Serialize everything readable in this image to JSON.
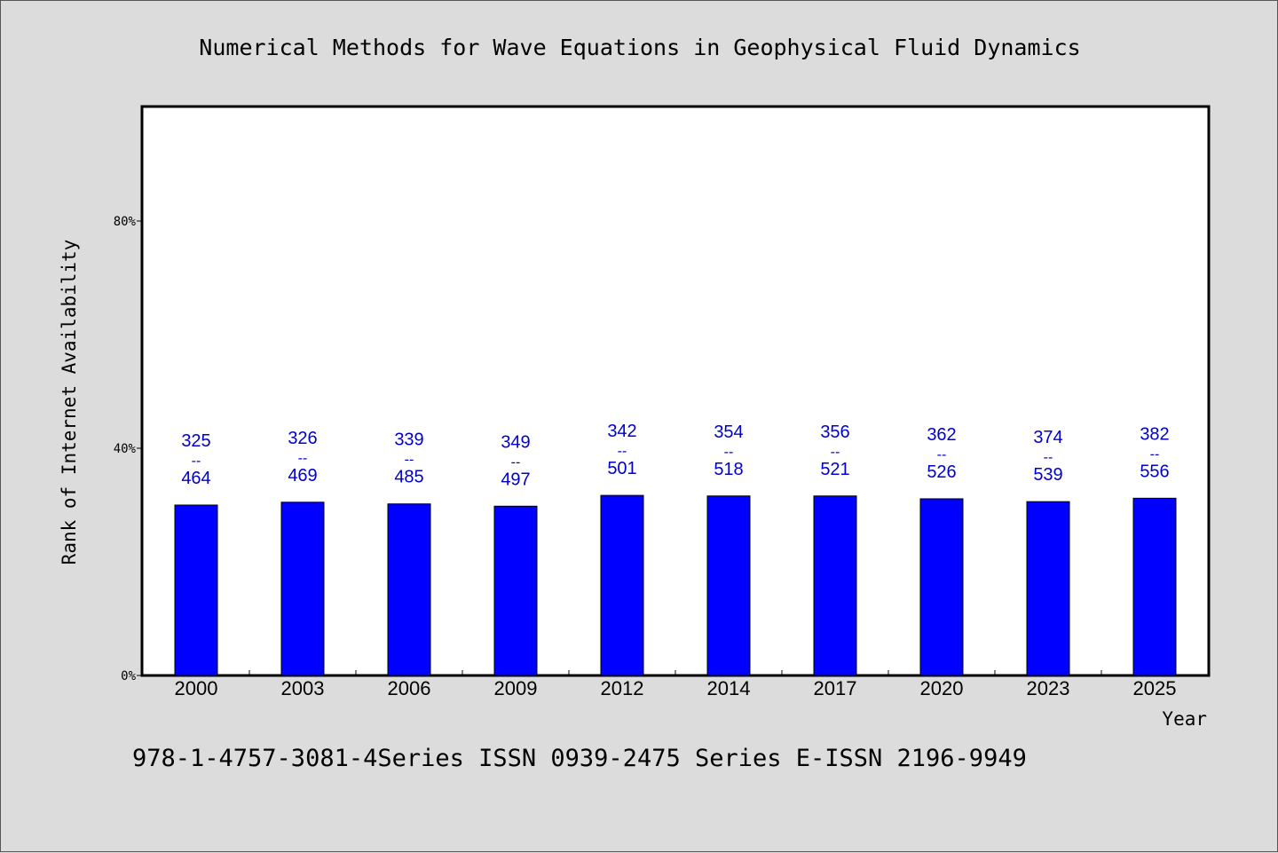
{
  "chart_data": {
    "type": "bar",
    "title": "Numerical Methods for Wave Equations in Geophysical Fluid Dynamics",
    "xlabel": "Year",
    "ylabel": "Rank of Internet Availability",
    "categories": [
      "2000",
      "2003",
      "2006",
      "2009",
      "2012",
      "2014",
      "2017",
      "2020",
      "2023",
      "2025"
    ],
    "values": [
      30.0,
      30.5,
      30.2,
      29.8,
      31.7,
      31.6,
      31.6,
      31.1,
      30.6,
      31.2
    ],
    "data_labels": [
      {
        "top": "325",
        "sep": "--",
        "bottom": "464"
      },
      {
        "top": "326",
        "sep": "--",
        "bottom": "469"
      },
      {
        "top": "339",
        "sep": "--",
        "bottom": "485"
      },
      {
        "top": "349",
        "sep": "--",
        "bottom": "497"
      },
      {
        "top": "342",
        "sep": "--",
        "bottom": "501"
      },
      {
        "top": "354",
        "sep": "--",
        "bottom": "518"
      },
      {
        "top": "356",
        "sep": "--",
        "bottom": "521"
      },
      {
        "top": "362",
        "sep": "--",
        "bottom": "526"
      },
      {
        "top": "374",
        "sep": "--",
        "bottom": "539"
      },
      {
        "top": "382",
        "sep": "--",
        "bottom": "556"
      }
    ],
    "ylim": [
      0,
      100
    ],
    "yticks": [
      0,
      40,
      80
    ],
    "ytick_labels": [
      "0%",
      "40%",
      "80%"
    ],
    "grid": false,
    "colors": {
      "bar": "#0000ff",
      "label": "#0000cc",
      "background": "#dcdcdc",
      "plot": "#ffffff"
    }
  },
  "footer": "978-1-4757-3081-4Series ISSN 0939-2475 Series E-ISSN 2196-9949"
}
